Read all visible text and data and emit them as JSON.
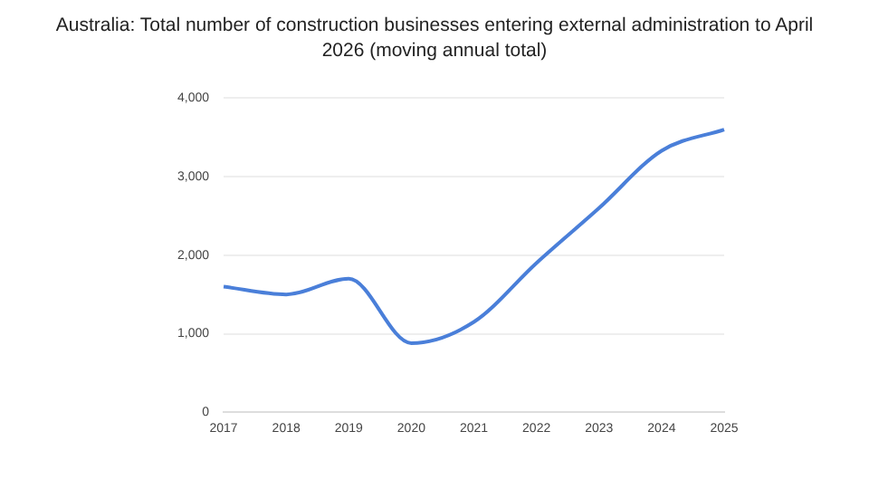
{
  "chart_data": {
    "type": "line",
    "title": "Australia: Total number of construction businesses entering external administration to April 2026 (moving annual total)",
    "categories": [
      "2017",
      "2018",
      "2019",
      "2020",
      "2021",
      "2022",
      "2023",
      "2024",
      "2025"
    ],
    "series": [
      {
        "color": "#4a7fd9",
        "values": [
          1600,
          1500,
          1700,
          880,
          1150,
          1900,
          2600,
          3330,
          3600
        ]
      }
    ],
    "ylim": [
      0,
      4000
    ],
    "yticks": [
      0,
      {
        "value": 1000,
        "label": "1,000"
      },
      {
        "value": 2000,
        "label": "2,000"
      },
      {
        "value": 3000,
        "label": "3,000"
      },
      {
        "value": 4000,
        "label": "4,000"
      }
    ],
    "grid": "y",
    "legend": false,
    "marker": "none",
    "line_style": "solid"
  }
}
